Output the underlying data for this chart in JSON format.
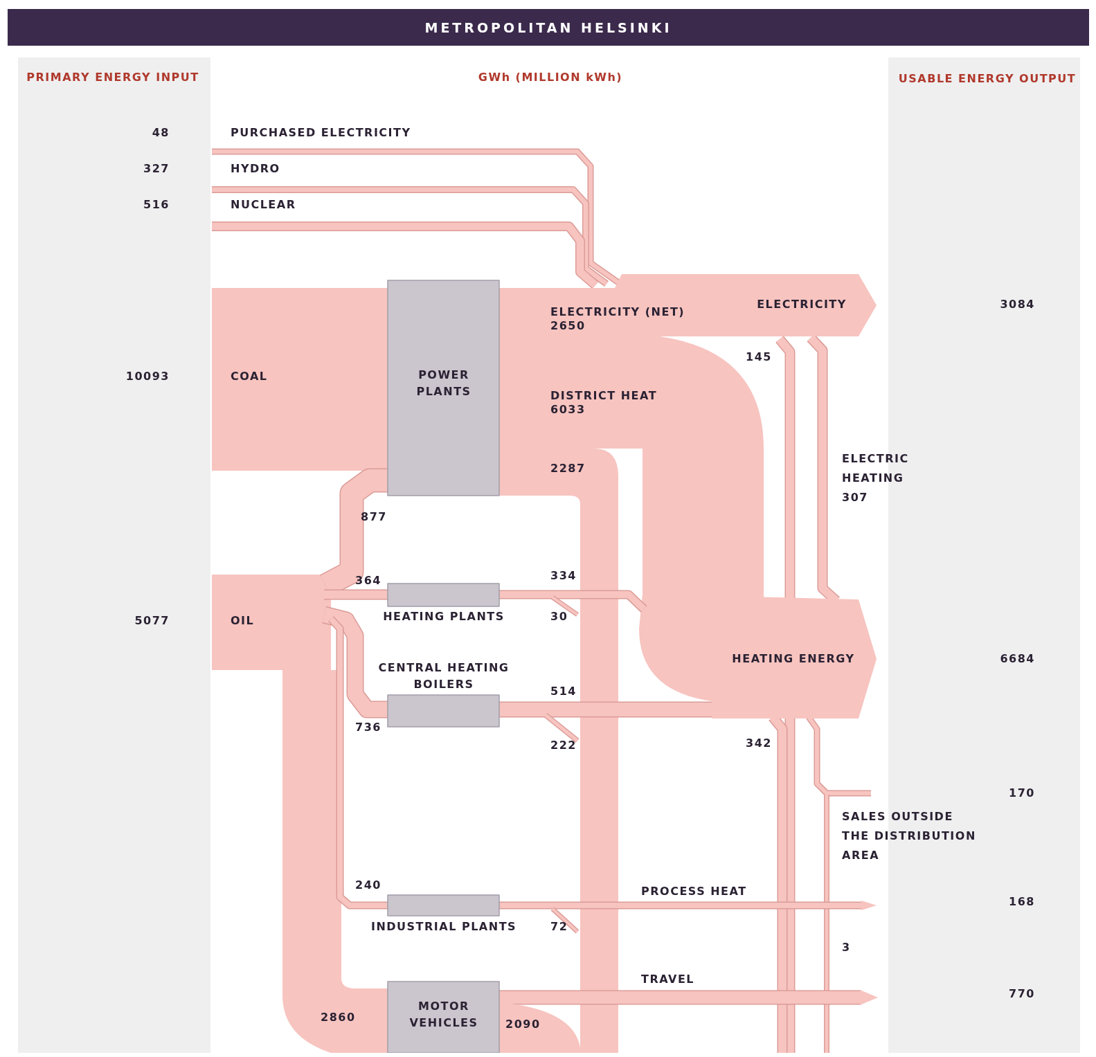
{
  "chart_data": {
    "type": "other",
    "data_labels": true,
    "title": "METROPOLITAN HELSINKI",
    "subtitle": "GWh (MILLION kWh)",
    "annotations": [
      "PRIMARY ENERGY INPUT",
      "USABLE ENERGY OUTPUT",
      "POWER PLANTS",
      "HEATING PLANTS",
      "CENTRAL HEATING BOILERS",
      "INDUSTRIAL PLANTS",
      "MOTOR VEHICLES",
      "2287",
      "877",
      "364",
      "334",
      "30",
      "514",
      "736",
      "222",
      "145",
      "342",
      "240",
      "72",
      "3",
      "2860",
      "2090"
    ],
    "categories": [
      "PURCHASED ELECTRICITY",
      "HYDRO",
      "NUCLEAR",
      "COAL",
      "OIL",
      "ELECTRICITY (NET)",
      "DISTRICT HEAT",
      "ELECTRICITY",
      "HEATING ENERGY",
      "ELECTRIC HEATING",
      "SALES OUTSIDE THE DISTRIBUTION AREA",
      "PROCESS HEAT",
      "TRAVEL"
    ],
    "values": [
      48,
      327,
      516,
      10093,
      5077,
      2650,
      6033,
      3084,
      6684,
      307,
      170,
      168,
      770
    ]
  }
}
